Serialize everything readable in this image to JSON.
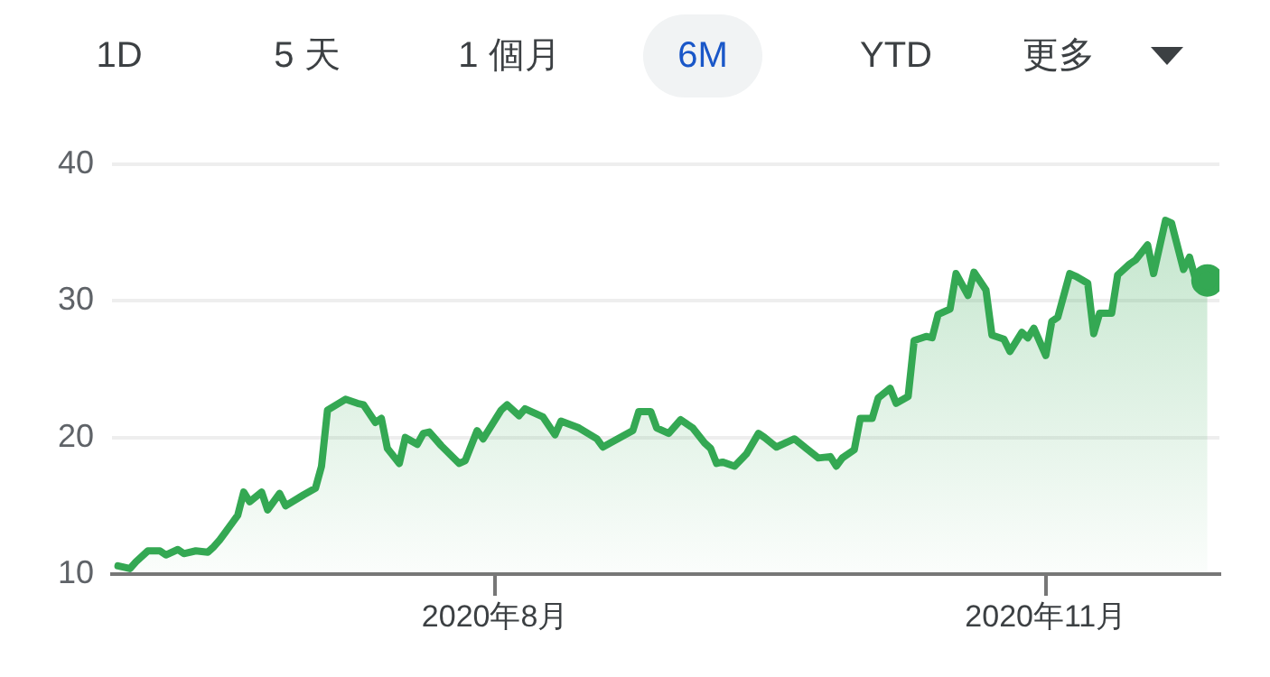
{
  "chart_data": {
    "type": "area",
    "annotations": [
      "1D",
      "5 天",
      "1 個月",
      "6M",
      "YTD",
      "更多"
    ],
    "x": [
      "2020-05-30",
      "2020-06-01",
      "2020-06-02",
      "2020-06-04",
      "2020-06-06",
      "2020-06-07",
      "2020-06-09",
      "2020-06-10",
      "2020-06-12",
      "2020-06-14",
      "2020-06-15",
      "2020-06-16",
      "2020-06-17",
      "2020-06-19",
      "2020-06-20",
      "2020-06-21",
      "2020-06-23",
      "2020-06-24",
      "2020-06-26",
      "2020-06-27",
      "2020-06-30",
      "2020-07-02",
      "2020-07-03",
      "2020-07-04",
      "2020-07-07",
      "2020-07-09",
      "2020-07-10",
      "2020-07-12",
      "2020-07-13",
      "2020-07-14",
      "2020-07-16",
      "2020-07-17",
      "2020-07-19",
      "2020-07-20",
      "2020-07-21",
      "2020-07-23",
      "2020-07-26",
      "2020-07-27",
      "2020-07-29",
      "2020-07-30",
      "2020-08-02",
      "2020-08-03",
      "2020-08-05",
      "2020-08-06",
      "2020-08-09",
      "2020-08-11",
      "2020-08-12",
      "2020-08-15",
      "2020-08-18",
      "2020-08-19",
      "2020-08-24",
      "2020-08-25",
      "2020-08-27",
      "2020-08-28",
      "2020-08-30",
      "2020-09-01",
      "2020-09-03",
      "2020-09-05",
      "2020-09-06",
      "2020-09-07",
      "2020-09-08",
      "2020-09-10",
      "2020-09-12",
      "2020-09-14",
      "2020-09-15",
      "2020-09-17",
      "2020-09-20",
      "2020-09-22",
      "2020-09-24",
      "2020-09-26",
      "2020-09-27",
      "2020-09-28",
      "2020-09-30",
      "2020-10-01",
      "2020-10-03",
      "2020-10-04",
      "2020-10-06",
      "2020-10-07",
      "2020-10-09",
      "2020-10-10",
      "2020-10-12",
      "2020-10-13",
      "2020-10-14",
      "2020-10-16",
      "2020-10-17",
      "2020-10-19",
      "2020-10-20",
      "2020-10-22",
      "2020-10-23",
      "2020-10-25",
      "2020-10-26",
      "2020-10-28",
      "2020-10-29",
      "2020-10-30",
      "2020-11-01",
      "2020-11-02",
      "2020-11-03",
      "2020-11-05",
      "2020-11-06",
      "2020-11-08",
      "2020-11-09",
      "2020-11-10",
      "2020-11-12",
      "2020-11-13",
      "2020-11-15",
      "2020-11-16",
      "2020-11-18",
      "2020-11-19",
      "2020-11-21",
      "2020-11-22",
      "2020-11-24",
      "2020-11-25",
      "2020-11-26",
      "2020-11-28"
    ],
    "series": [
      {
        "color": "#34a853",
        "values": [
          10.6,
          10.4,
          10.9,
          11.7,
          11.7,
          11.4,
          11.8,
          11.5,
          11.7,
          11.6,
          12.0,
          12.5,
          13.1,
          14.3,
          16.0,
          15.3,
          16.0,
          14.7,
          15.9,
          15.0,
          15.8,
          16.3,
          17.9,
          22.0,
          22.8,
          22.5,
          22.4,
          21.1,
          21.4,
          19.2,
          18.1,
          20.0,
          19.5,
          20.3,
          20.4,
          19.4,
          18.1,
          18.3,
          20.5,
          19.9,
          22.0,
          22.4,
          21.6,
          22.1,
          21.5,
          20.2,
          21.2,
          20.7,
          19.9,
          19.3,
          20.5,
          21.9,
          21.9,
          20.7,
          20.3,
          21.3,
          20.7,
          19.6,
          19.2,
          18.1,
          18.2,
          17.9,
          18.8,
          20.3,
          20.0,
          19.3,
          19.9,
          19.2,
          18.5,
          18.6,
          17.9,
          18.5,
          19.1,
          21.4,
          21.4,
          22.9,
          23.6,
          22.5,
          23.0,
          27.1,
          27.4,
          27.3,
          29.0,
          29.4,
          32.0,
          30.4,
          32.1,
          30.8,
          27.5,
          27.2,
          26.3,
          27.7,
          27.3,
          28.0,
          26.0,
          28.5,
          28.8,
          32.0,
          31.8,
          31.3,
          27.6,
          29.1,
          29.1,
          31.9,
          32.7,
          33.0,
          34.1,
          32.0,
          35.9,
          35.7,
          32.3,
          33.2,
          31.6,
          31.5
        ]
      }
    ],
    "xlim": [
      "2020-05-29",
      "2020-11-30"
    ],
    "xticks": [
      {
        "value": "2020-08-01",
        "label": "2020年8月"
      },
      {
        "value": "2020-11-01",
        "label": "2020年11月"
      }
    ],
    "ylim": [
      10,
      40
    ],
    "yticks": [
      10,
      20,
      30,
      40
    ],
    "grid": "y",
    "legend": false,
    "marker": "none",
    "line_style": "solid"
  }
}
